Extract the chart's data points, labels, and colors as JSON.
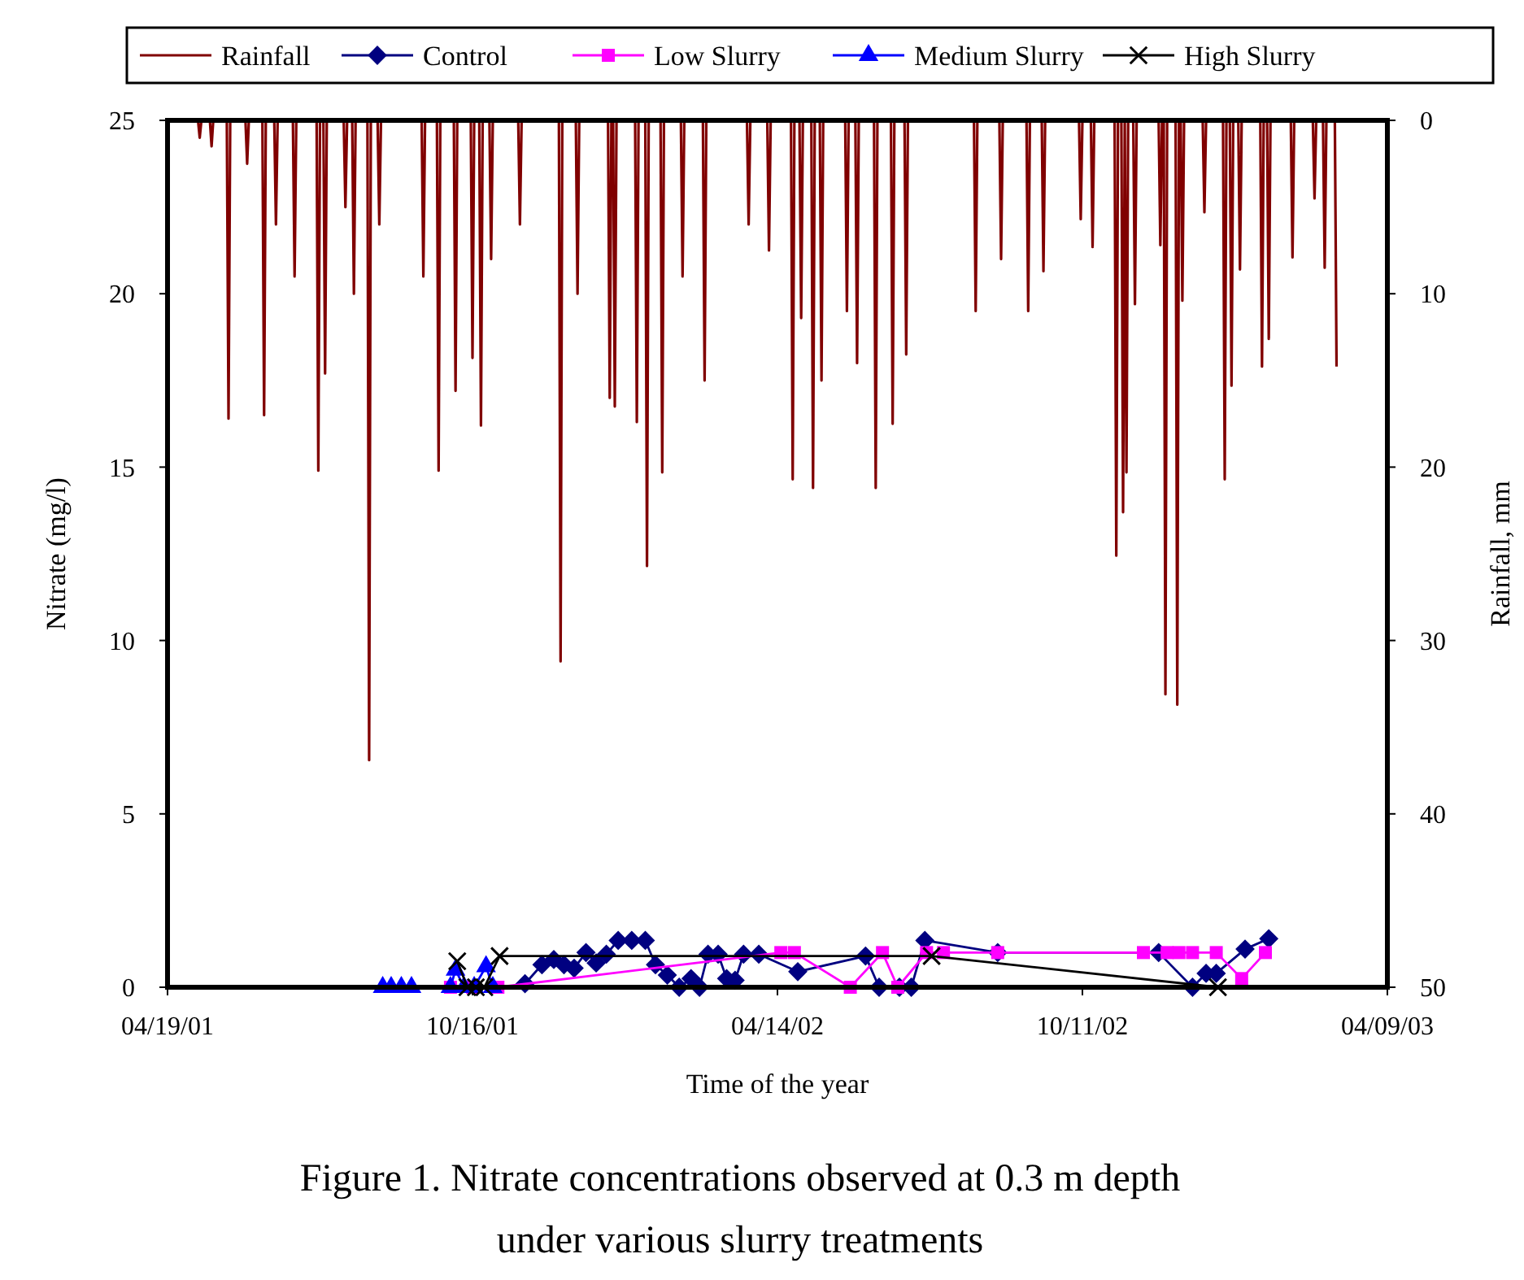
{
  "chart_data": {
    "type": "line",
    "title": "Figure 1. Nitrate concentrations observed at 0.3 m depth under various slurry treatments",
    "xlabel": "Time of the year",
    "ylabel": "Nitrate (mg/l)",
    "y2label": "Rainfall, mm",
    "xlim": [
      "2001-04-19",
      "2003-04-09"
    ],
    "xticks": [
      {
        "value": "2001-04-19",
        "label": "04/19/01"
      },
      {
        "value": "2001-10-16",
        "label": "10/16/01"
      },
      {
        "value": "2002-04-14",
        "label": "04/14/02"
      },
      {
        "value": "2002-10-11",
        "label": "10/11/02"
      },
      {
        "value": "2003-04-09",
        "label": "04/09/03"
      }
    ],
    "ylim": [
      0,
      25
    ],
    "yticks": [
      0,
      5,
      10,
      15,
      20,
      25
    ],
    "y2lim": [
      50,
      0
    ],
    "y2ticks": [
      0,
      10,
      20,
      30,
      40,
      50
    ],
    "grid": false,
    "legend": "top",
    "series": [
      {
        "name": "Rainfall",
        "color": "#800000",
        "axis": "y2",
        "marker": "none",
        "x": [
          "2001-05-01",
          "2001-05-07",
          "2001-05-08",
          "2001-05-09",
          "2001-05-14",
          "2001-05-15",
          "2001-05-16",
          "2001-05-24",
          "2001-05-25",
          "2001-05-26",
          "2001-06-04",
          "2001-06-05",
          "2001-06-06",
          "2001-06-14",
          "2001-06-15",
          "2001-06-16",
          "2001-06-21",
          "2001-06-22",
          "2001-06-23",
          "2001-07-02",
          "2001-07-03",
          "2001-07-04",
          "2001-07-16",
          "2001-07-17",
          "2001-07-18",
          "2001-07-20",
          "2001-07-21",
          "2001-07-22",
          "2001-08-01",
          "2001-08-02",
          "2001-08-03",
          "2001-08-06",
          "2001-08-07",
          "2001-08-08",
          "2001-08-15",
          "2001-08-16",
          "2001-08-17",
          "2001-08-21",
          "2001-08-22",
          "2001-08-23",
          "2001-09-16",
          "2001-09-17",
          "2001-09-18",
          "2001-09-25",
          "2001-09-26",
          "2001-09-27",
          "2001-10-05",
          "2001-10-06",
          "2001-10-07",
          "2001-10-15",
          "2001-10-16",
          "2001-10-17",
          "2001-10-20",
          "2001-10-21",
          "2001-10-22",
          "2001-10-26",
          "2001-10-27",
          "2001-10-28",
          "2001-11-12",
          "2001-11-13",
          "2001-11-14",
          "2001-12-06",
          "2001-12-07",
          "2001-12-08",
          "2001-12-16",
          "2001-12-17",
          "2001-12-18",
          "2002-01-04",
          "2002-01-05",
          "2002-01-06",
          "2002-01-07",
          "2002-01-08",
          "2002-01-09",
          "2002-01-20",
          "2002-01-21",
          "2002-01-22",
          "2002-01-26",
          "2002-01-27",
          "2002-01-28",
          "2002-02-04",
          "2002-02-05",
          "2002-02-06",
          "2002-02-16",
          "2002-02-17",
          "2002-02-18",
          "2002-03-01",
          "2002-03-02",
          "2002-03-03",
          "2002-03-27",
          "2002-03-28",
          "2002-03-29",
          "2002-04-08",
          "2002-04-09",
          "2002-04-10",
          "2002-04-22",
          "2002-04-23",
          "2002-04-24",
          "2002-04-27",
          "2002-04-28",
          "2002-04-29",
          "2002-05-04",
          "2002-05-05",
          "2002-05-06",
          "2002-05-09",
          "2002-05-10",
          "2002-05-11",
          "2002-05-24",
          "2002-05-25",
          "2002-05-26",
          "2002-05-30",
          "2002-05-31",
          "2002-06-01",
          "2002-06-10",
          "2002-06-11",
          "2002-06-12",
          "2002-06-20",
          "2002-06-21",
          "2002-06-22",
          "2002-06-28",
          "2002-06-29",
          "2002-06-30",
          "2002-08-08",
          "2002-08-09",
          "2002-08-10",
          "2002-08-23",
          "2002-08-24",
          "2002-08-25",
          "2002-09-08",
          "2002-09-09",
          "2002-09-10",
          "2002-09-17",
          "2002-09-18",
          "2002-09-19",
          "2002-10-09",
          "2002-10-10",
          "2002-10-11",
          "2002-10-16",
          "2002-10-17",
          "2002-10-18",
          "2002-10-30",
          "2002-10-31",
          "2002-11-01",
          "2002-11-03",
          "2002-11-04",
          "2002-11-05",
          "2002-11-06",
          "2002-11-07",
          "2002-11-10",
          "2002-11-11",
          "2002-11-12",
          "2002-11-25",
          "2002-11-26",
          "2002-11-27",
          "2002-11-28",
          "2002-11-29",
          "2002-11-30",
          "2002-12-05",
          "2002-12-06",
          "2002-12-07",
          "2002-12-08",
          "2002-12-09",
          "2002-12-10",
          "2002-12-21",
          "2002-12-22",
          "2002-12-23",
          "2003-01-02",
          "2003-01-03",
          "2003-01-04",
          "2003-01-06",
          "2003-01-07",
          "2003-01-08",
          "2003-01-11",
          "2003-01-12",
          "2003-01-13",
          "2003-01-24",
          "2003-01-25",
          "2003-01-26",
          "2003-01-28",
          "2003-01-29",
          "2003-01-30",
          "2003-02-11",
          "2003-02-12",
          "2003-02-13",
          "2003-02-24",
          "2003-02-25",
          "2003-02-26",
          "2003-03-02",
          "2003-03-03",
          "2003-03-04",
          "2003-03-09",
          "2003-03-10"
        ],
        "values": [
          0,
          0,
          1,
          0,
          0,
          1.5,
          0,
          0,
          17.2,
          0,
          0,
          2.5,
          0,
          0,
          17,
          0,
          0,
          6,
          0,
          0,
          9,
          0,
          0,
          20.2,
          0,
          0,
          14.6,
          0,
          0,
          5,
          0,
          0,
          10,
          0,
          0,
          36.9,
          0,
          0,
          6,
          0,
          0,
          9,
          0,
          0,
          20.2,
          0,
          0,
          15.6,
          0,
          0,
          13.7,
          0,
          0,
          17.6,
          0,
          0,
          8,
          0,
          0,
          6,
          0,
          0,
          31.2,
          0,
          0,
          10,
          0,
          0,
          16,
          0,
          0,
          16.5,
          0,
          0,
          17.4,
          0,
          0,
          25.7,
          0,
          0,
          20.3,
          0,
          0,
          9,
          0,
          0,
          15,
          0,
          0,
          6,
          0,
          0,
          7.5,
          0,
          0,
          20.7,
          0,
          0,
          11.4,
          0,
          0,
          21.2,
          0,
          0,
          15,
          0,
          0,
          11,
          0,
          0,
          14,
          0,
          0,
          21.2,
          0,
          0,
          17.5,
          0,
          0,
          13.5,
          0,
          0,
          11,
          0,
          0,
          8,
          0,
          0,
          11,
          0,
          0,
          8.7,
          0,
          0,
          5.7,
          0,
          0,
          7.3,
          0,
          0,
          25.1,
          0,
          0,
          22.6,
          0,
          20.3,
          0,
          0,
          10.6,
          0,
          0,
          7.2,
          0,
          0,
          33.1,
          0,
          0,
          33.7,
          0,
          0,
          10.4,
          0,
          0,
          5.3,
          0,
          0,
          20.7,
          0,
          0,
          15.3,
          0,
          0,
          8.6,
          0,
          0,
          14.2,
          0,
          0,
          12.6,
          0,
          0,
          7.9,
          0,
          0,
          4.5,
          0,
          0,
          8.5,
          0,
          0,
          14.2
        ]
      },
      {
        "name": "Control",
        "color": "#000080",
        "marker": "diamond",
        "x": [
          "2001-11-16",
          "2001-11-26",
          "2001-12-03",
          "2001-12-09",
          "2001-12-15",
          "2001-12-22",
          "2001-12-28",
          "2002-01-03",
          "2002-01-10",
          "2002-01-18",
          "2002-01-26",
          "2002-02-01",
          "2002-02-08",
          "2002-02-15",
          "2002-02-22",
          "2002-02-27",
          "2002-03-04",
          "2002-03-10",
          "2002-03-15",
          "2002-03-20",
          "2002-03-25",
          "2002-04-03",
          "2002-04-26",
          "2002-06-05",
          "2002-06-13",
          "2002-06-25",
          "2002-07-02",
          "2002-07-10",
          "2002-08-22",
          "2002-11-25",
          "2002-12-15",
          "2002-12-23",
          "2002-12-29",
          "2003-01-15",
          "2003-01-29"
        ],
        "values": [
          0.1,
          0.65,
          0.8,
          0.65,
          0.55,
          1,
          0.7,
          0.95,
          1.35,
          1.35,
          1.35,
          0.65,
          0.35,
          0,
          0.25,
          0,
          0.95,
          0.95,
          0.25,
          0.2,
          0.95,
          0.95,
          0.45,
          0.9,
          0,
          0,
          0,
          1.35,
          1,
          1,
          0,
          0.4,
          0.4,
          1.1,
          1.4
        ]
      },
      {
        "name": "Low Slurry",
        "color": "#ff00ff",
        "marker": "square",
        "x": [
          "2001-10-03",
          "2001-10-16",
          "2001-10-31",
          "2002-04-16",
          "2002-04-24",
          "2002-05-27",
          "2002-06-15",
          "2002-06-24",
          "2002-07-11",
          "2002-07-21",
          "2002-08-22",
          "2002-11-16",
          "2002-11-30",
          "2002-12-07",
          "2002-12-15",
          "2002-12-29",
          "2003-01-13",
          "2003-01-27"
        ],
        "values": [
          0,
          0,
          0,
          1,
          1,
          0,
          1,
          0,
          1,
          1,
          1,
          1,
          1,
          1,
          1,
          1,
          0.25,
          1
        ]
      },
      {
        "name": "Medium Slurry",
        "color": "#0000ff",
        "marker": "triangle",
        "x": [
          "2001-08-24",
          "2001-08-29",
          "2001-09-04",
          "2001-09-10",
          "2001-10-03",
          "2001-10-06",
          "2001-10-11",
          "2001-10-17",
          "2001-10-24",
          "2001-10-28"
        ],
        "values": [
          0,
          0,
          0,
          0,
          0,
          0.5,
          0,
          0,
          0.6,
          0
        ]
      },
      {
        "name": "High Slurry",
        "color": "#000000",
        "marker": "cross",
        "x": [
          "2001-10-07",
          "2001-10-13",
          "2001-10-18",
          "2001-10-23",
          "2001-11-01",
          "2002-07-14",
          "2002-12-30"
        ],
        "values": [
          0.75,
          0,
          0,
          0,
          0.9,
          0.9,
          0
        ]
      }
    ]
  }
}
